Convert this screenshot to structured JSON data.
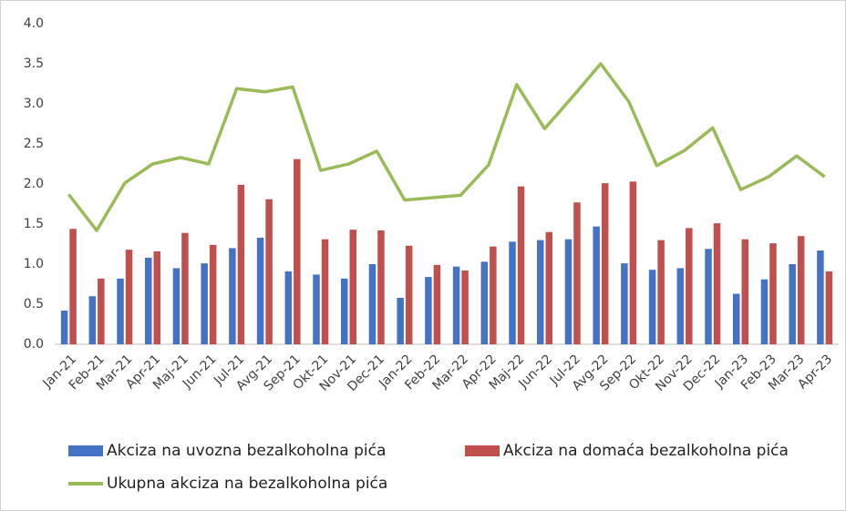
{
  "chart_data": {
    "type": "bar-line",
    "categories": [
      "Jan-21",
      "Feb-21",
      "Mar-21",
      "Apr-21",
      "Maj-21",
      "Jun-21",
      "Jul-21",
      "Avg-21",
      "Sep-21",
      "Okt-21",
      "Nov-21",
      "Dec-21",
      "Jan-22",
      "Feb-22",
      "Mar-22",
      "Apr-22",
      "Maj-22",
      "Jun-22",
      "Jul-22",
      "Avg-22",
      "Sep-22",
      "Okt-22",
      "Nov-22",
      "Dec-22",
      "Jan-23",
      "Feb-23",
      "Mar-23",
      "Apr-23"
    ],
    "series": [
      {
        "name": "Akciza na uvozna bezalkoholna pića",
        "type": "bar",
        "color": "#4472c4",
        "values": [
          0.42,
          0.6,
          0.82,
          1.08,
          0.95,
          1.01,
          1.2,
          1.33,
          0.91,
          0.87,
          0.82,
          1.0,
          0.58,
          0.84,
          0.97,
          1.03,
          1.28,
          1.3,
          1.31,
          1.47,
          1.01,
          0.93,
          0.95,
          1.19,
          0.63,
          0.81,
          1.0,
          1.17
        ]
      },
      {
        "name": "Akciza na domaća bezalkoholna pića",
        "type": "bar",
        "color": "#c0504d",
        "values": [
          1.44,
          0.82,
          1.18,
          1.16,
          1.39,
          1.24,
          1.99,
          1.81,
          2.31,
          1.31,
          1.43,
          1.42,
          1.23,
          0.99,
          0.92,
          1.22,
          1.97,
          1.4,
          1.77,
          2.01,
          2.03,
          1.3,
          1.45,
          1.51,
          1.31,
          1.26,
          1.35,
          0.91
        ]
      },
      {
        "name": "Ukupna akciza na bezalkoholna pića",
        "type": "line",
        "color": "#9bbb59",
        "values": [
          1.87,
          1.42,
          2.01,
          2.25,
          2.33,
          2.25,
          3.19,
          3.15,
          3.21,
          2.17,
          2.25,
          2.41,
          1.8,
          1.83,
          1.86,
          2.24,
          3.24,
          2.69,
          3.09,
          3.5,
          3.03,
          2.23,
          2.42,
          2.7,
          1.93,
          2.09,
          2.35,
          2.09
        ]
      }
    ],
    "ylim": [
      0,
      4
    ],
    "yticks": [
      {
        "value": 0,
        "label": "0.0"
      },
      0.5,
      {
        "value": 1,
        "label": "1.0"
      },
      1.5,
      {
        "value": 2,
        "label": "2.0"
      },
      2.5,
      {
        "value": 3,
        "label": "3.0"
      },
      3.5,
      {
        "value": 4,
        "label": "4.0"
      }
    ],
    "grid": false
  }
}
